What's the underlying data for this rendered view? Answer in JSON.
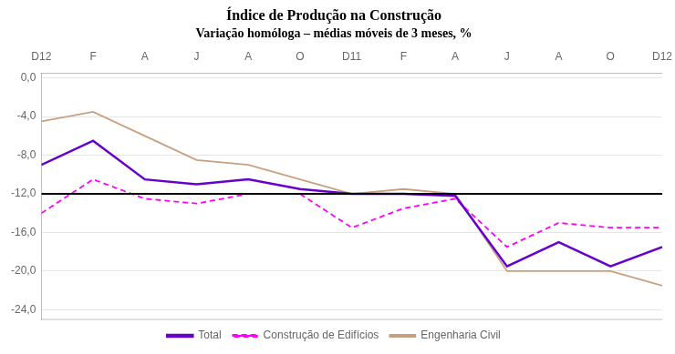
{
  "chart_data": {
    "type": "line",
    "title": "Índice de Produção na Construção",
    "subtitle": "Variação homóloga – médias móveis de 3 meses, %",
    "categories": [
      "D12",
      "F",
      "A",
      "J",
      "A",
      "O",
      "D11",
      "F",
      "A",
      "J",
      "A",
      "O",
      "D12"
    ],
    "series": [
      {
        "name": "Engenharia Civil",
        "color": "#c8a080",
        "line_style": "solid",
        "values": [
          -4.5,
          -3.5,
          -6.0,
          -8.5,
          -9.0,
          -10.5,
          -12.0,
          -11.5,
          -12.0,
          -20.0,
          -20.0,
          -20.0,
          -21.5
        ]
      },
      {
        "name": "Construção de Edifícios",
        "color": "#ff00ff",
        "line_style": "dashed",
        "values": [
          -14.0,
          -10.5,
          -12.5,
          -13.0,
          -12.0,
          -12.0,
          -15.5,
          -13.5,
          -12.5,
          -17.5,
          -15.0,
          -15.5,
          -15.5
        ]
      },
      {
        "name": "Total",
        "color": "#6600cc",
        "line_style": "solid",
        "values": [
          -9.0,
          -6.5,
          -10.5,
          -11.0,
          -10.5,
          -11.5,
          -12.0,
          -12.0,
          -12.2,
          -19.5,
          -17.0,
          -19.5,
          -17.5
        ]
      }
    ],
    "ylim": [
      -25.0,
      0.5
    ],
    "yticks": [
      {
        "value": 0.0,
        "label": "0,0"
      },
      {
        "value": -4.0,
        "label": "-4,0"
      },
      {
        "value": -8.0,
        "label": "-8,0"
      },
      {
        "value": -12.0,
        "label": "-12,0"
      },
      {
        "value": -16.0,
        "label": "-16,0"
      },
      {
        "value": -20.0,
        "label": "-20,0"
      },
      {
        "value": -24.0,
        "label": "-24,0"
      }
    ],
    "reference_line": {
      "y": -12,
      "color": "#000000"
    },
    "grid": true,
    "legend": "bottom"
  }
}
